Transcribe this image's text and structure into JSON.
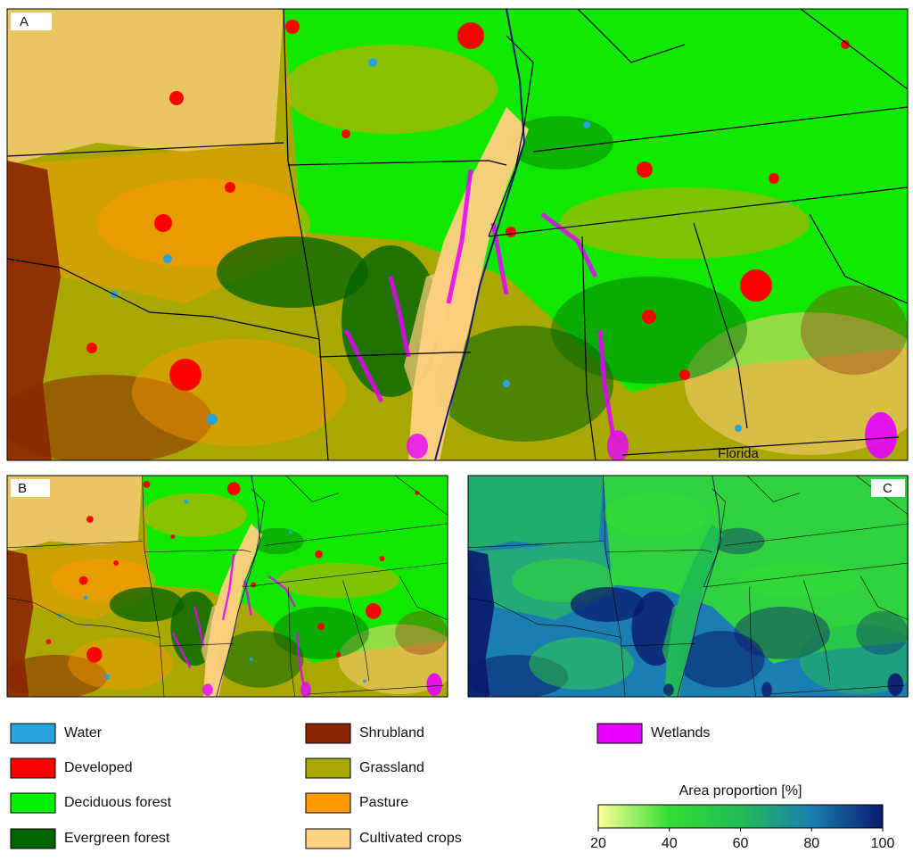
{
  "panels": [
    {
      "label": "A"
    },
    {
      "label": "B"
    },
    {
      "label": "C"
    }
  ],
  "map_labels": [
    "Florida"
  ],
  "legend": [
    {
      "name": "Water",
      "color": "#29a3dc"
    },
    {
      "name": "Developed",
      "color": "#ff0000"
    },
    {
      "name": "Deciduous forest",
      "color": "#00ee00"
    },
    {
      "name": "Evergreen forest",
      "color": "#006400"
    },
    {
      "name": "Shrubland",
      "color": "#8b2500"
    },
    {
      "name": "Grassland",
      "color": "#a8a800"
    },
    {
      "name": "Pasture",
      "color": "#ff9900"
    },
    {
      "name": "Cultivated crops",
      "color": "#ffd080"
    },
    {
      "name": "Wetlands",
      "color": "#e600ff"
    }
  ],
  "colorbar": {
    "title": "Area proportion [%]",
    "lim": [
      20,
      100
    ],
    "ticks": [
      20,
      40,
      60,
      80,
      100
    ],
    "colors": [
      "#ffff99",
      "#33dd33",
      "#22bb55",
      "#1a7fb0",
      "#0a1a6e"
    ]
  }
}
